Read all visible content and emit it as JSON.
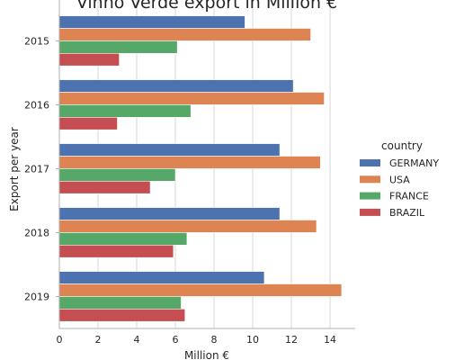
{
  "chart_data": {
    "type": "bar",
    "orientation": "horizontal",
    "title": "Vinho Verde export in Million €",
    "xlabel": "Million €",
    "ylabel": "Export per year",
    "categories": [
      "2015",
      "2016",
      "2017",
      "2018",
      "2019"
    ],
    "xlim": [
      0,
      15.3
    ],
    "xticks": [
      0,
      2,
      4,
      6,
      8,
      10,
      12,
      14
    ],
    "grid": "vertical",
    "legend": {
      "title": "country",
      "placement": "right"
    },
    "series": [
      {
        "name": "GERMANY",
        "color": "#4c72b0",
        "values": [
          9.6,
          12.1,
          11.4,
          11.4,
          10.6
        ]
      },
      {
        "name": "USA",
        "color": "#dd8452",
        "values": [
          13.0,
          13.7,
          13.5,
          13.3,
          14.6
        ]
      },
      {
        "name": "FRANCE",
        "color": "#55a868",
        "values": [
          6.1,
          6.8,
          6.0,
          6.6,
          6.3
        ]
      },
      {
        "name": "BRAZIL",
        "color": "#c44e52",
        "values": [
          3.1,
          3.0,
          4.7,
          5.9,
          6.5
        ]
      }
    ]
  }
}
